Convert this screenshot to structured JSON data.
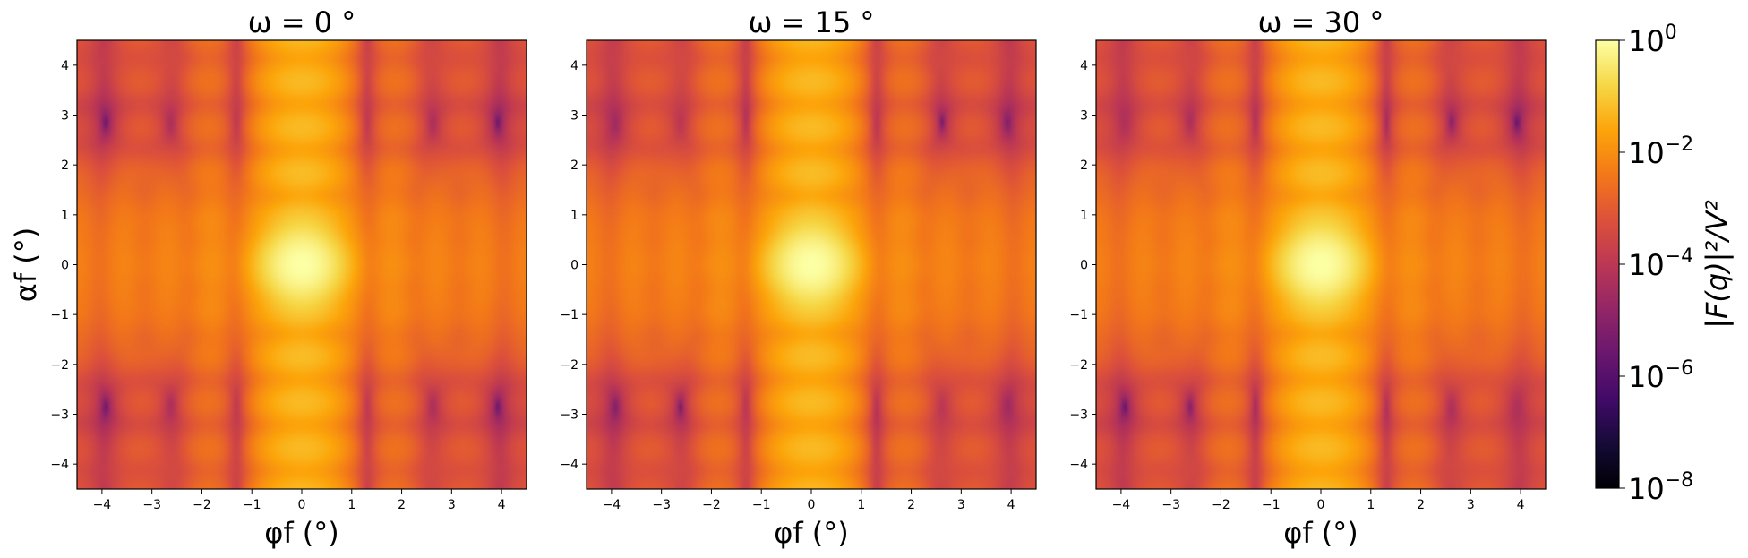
{
  "chart_data": [
    {
      "type": "heatmap",
      "title": "ω = 0 °",
      "xlabel": "φf (°)",
      "ylabel": "αf (°)",
      "xlim": [
        -4.5,
        4.5
      ],
      "ylim": [
        -4.5,
        4.5
      ],
      "xticks": [
        -4,
        -3,
        -2,
        -1,
        0,
        1,
        2,
        3,
        4
      ],
      "yticks": [
        -4,
        -3,
        -2,
        -1,
        0,
        1,
        2,
        3,
        4
      ],
      "grid": false,
      "omega_deg": 0
    },
    {
      "type": "heatmap",
      "title": "ω = 15 °",
      "xlabel": "φf (°)",
      "ylabel": "",
      "xlim": [
        -4.5,
        4.5
      ],
      "ylim": [
        -4.5,
        4.5
      ],
      "xticks": [
        -4,
        -3,
        -2,
        -1,
        0,
        1,
        2,
        3,
        4
      ],
      "yticks": [
        -4,
        -3,
        -2,
        -1,
        0,
        1,
        2,
        3,
        4
      ],
      "grid": false,
      "omega_deg": 15
    },
    {
      "type": "heatmap",
      "title": "ω = 30 °",
      "xlabel": "φf (°)",
      "ylabel": "",
      "xlim": [
        -4.5,
        4.5
      ],
      "ylim": [
        -4.5,
        4.5
      ],
      "xticks": [
        -4,
        -3,
        -2,
        -1,
        0,
        1,
        2,
        3,
        4
      ],
      "yticks": [
        -4,
        -3,
        -2,
        -1,
        0,
        1,
        2,
        3,
        4
      ],
      "grid": false,
      "omega_deg": 30
    }
  ],
  "colorbar": {
    "label": "|F(q)|²/V²",
    "scale": "log",
    "colormap": "inferno",
    "range": [
      1e-08,
      1
    ],
    "ticks": [
      {
        "value": 1,
        "base": "10",
        "exp": "0"
      },
      {
        "value": 0.01,
        "base": "10",
        "exp": "−2"
      },
      {
        "value": 0.0001,
        "base": "10",
        "exp": "−4"
      },
      {
        "value": 1e-06,
        "base": "10",
        "exp": "−6"
      },
      {
        "value": 1e-08,
        "base": "10",
        "exp": "−8"
      }
    ]
  }
}
